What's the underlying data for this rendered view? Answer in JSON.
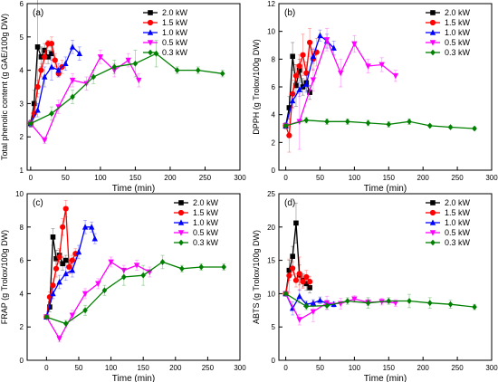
{
  "chart_data": [
    {
      "type": "line",
      "panel_label": "(a)",
      "xlabel": "Time (min)",
      "ylabel": "Total phenolic content (g GAE/100g DW)",
      "xlim": [
        -5,
        300
      ],
      "ylim": [
        1,
        6
      ],
      "xticks": [
        0,
        50,
        100,
        150,
        200,
        250,
        300
      ],
      "yticks": [
        1,
        2,
        3,
        4,
        5,
        6
      ],
      "legend_position": "top-center",
      "series": [
        {
          "name": "2.0 kW",
          "color": "#000000",
          "marker": "square",
          "x": [
            0,
            5,
            10,
            15,
            20,
            25,
            30
          ],
          "y": [
            2.4,
            3.0,
            4.7,
            4.4,
            4.6,
            4.4,
            4.5
          ],
          "err": [
            0.1,
            0.4,
            1.5,
            0.3,
            0.2,
            0.2,
            0.2
          ]
        },
        {
          "name": "1.5 kW",
          "color": "#ff0000",
          "marker": "circle",
          "x": [
            0,
            5,
            10,
            15,
            20,
            25,
            30,
            35,
            40,
            45
          ],
          "y": [
            2.4,
            2.7,
            3.5,
            4.0,
            4.4,
            4.8,
            4.8,
            4.3,
            3.9,
            4.1
          ],
          "err": [
            0.1,
            0.1,
            0.2,
            0.2,
            0.2,
            0.1,
            0.2,
            0.2,
            0.1,
            0.2
          ]
        },
        {
          "name": "1.0 kW",
          "color": "#0000ff",
          "marker": "triangle-up",
          "x": [
            0,
            10,
            20,
            30,
            40,
            50,
            60,
            70
          ],
          "y": [
            2.4,
            2.8,
            3.8,
            4.1,
            4.0,
            4.2,
            4.7,
            4.5
          ],
          "err": [
            0.1,
            0.2,
            0.3,
            0.4,
            0.2,
            0.2,
            0.2,
            0.2
          ]
        },
        {
          "name": "0.5 kW",
          "color": "#ff00ff",
          "marker": "triangle-down",
          "x": [
            0,
            20,
            40,
            60,
            80,
            100,
            120,
            140,
            155
          ],
          "y": [
            2.4,
            1.9,
            2.9,
            3.7,
            3.6,
            4.4,
            4.0,
            4.3,
            3.7
          ],
          "err": [
            0.1,
            0.1,
            0.2,
            0.2,
            0.2,
            0.2,
            0.2,
            0.2,
            0.2
          ]
        },
        {
          "name": "0.3 kW",
          "color": "#008000",
          "marker": "diamond",
          "x": [
            0,
            30,
            60,
            90,
            120,
            150,
            180,
            210,
            240,
            275
          ],
          "y": [
            2.4,
            2.7,
            3.2,
            3.8,
            4.1,
            4.2,
            4.5,
            4.0,
            4.0,
            3.9
          ],
          "err": [
            0.1,
            0.2,
            0.2,
            0.2,
            0.2,
            0.4,
            0.4,
            0.1,
            0.1,
            0.1
          ]
        }
      ]
    },
    {
      "type": "line",
      "panel_label": "(b)",
      "xlabel": "Time (min)",
      "ylabel": "DPPH  (g Trolox/100g DW)",
      "xlim": [
        -10,
        300
      ],
      "ylim": [
        0,
        12
      ],
      "xticks": [
        0,
        50,
        100,
        150,
        200,
        250,
        300
      ],
      "yticks": [
        0,
        2,
        4,
        6,
        8,
        10,
        12
      ],
      "legend_position": "top-right",
      "series": [
        {
          "name": "2.0 kW",
          "color": "#000000",
          "marker": "square",
          "x": [
            0,
            5,
            10,
            15,
            20,
            25,
            30,
            35
          ],
          "y": [
            3.2,
            4.5,
            8.2,
            6.1,
            7.2,
            6.0,
            6.3,
            5.6
          ],
          "err": [
            0.2,
            0.8,
            1.0,
            1.5,
            0.8,
            0.6,
            0.6,
            0.5
          ]
        },
        {
          "name": "1.5 kW",
          "color": "#ff0000",
          "marker": "circle",
          "x": [
            0,
            5,
            10,
            15,
            20,
            25,
            30,
            35,
            40,
            45
          ],
          "y": [
            3.2,
            2.5,
            5.5,
            6.8,
            7.5,
            8.3,
            7.0,
            9.2,
            8.0,
            8.5
          ],
          "err": [
            0.2,
            1.2,
            1.0,
            0.8,
            0.8,
            1.5,
            0.8,
            1.0,
            0.8,
            1.0
          ]
        },
        {
          "name": "1.0 kW",
          "color": "#0000ff",
          "marker": "triangle-up",
          "x": [
            0,
            10,
            20,
            30,
            40,
            50,
            60,
            70
          ],
          "y": [
            3.2,
            5.0,
            5.8,
            6.2,
            8.2,
            9.7,
            9.3,
            8.8
          ],
          "err": [
            0.2,
            0.5,
            0.5,
            0.6,
            0.5,
            0.4,
            0.5,
            0.5
          ]
        },
        {
          "name": "0.5 kW",
          "color": "#ff00ff",
          "marker": "triangle-down",
          "x": [
            0,
            20,
            40,
            60,
            80,
            100,
            120,
            140,
            160
          ],
          "y": [
            3.2,
            3.5,
            6.5,
            9.4,
            7.0,
            9.1,
            7.5,
            7.6,
            6.8
          ],
          "err": [
            0.2,
            2.0,
            0.8,
            0.8,
            1.0,
            0.6,
            0.5,
            0.5,
            0.4
          ]
        },
        {
          "name": "0.3 kW",
          "color": "#008000",
          "marker": "diamond",
          "x": [
            0,
            30,
            60,
            90,
            120,
            150,
            180,
            210,
            240,
            275
          ],
          "y": [
            3.2,
            3.6,
            3.5,
            3.5,
            3.4,
            3.3,
            3.5,
            3.2,
            3.1,
            3.0
          ],
          "err": [
            0.2,
            0.2,
            0.2,
            0.2,
            0.2,
            0.2,
            0.2,
            0.1,
            0.1,
            0.1
          ]
        }
      ]
    },
    {
      "type": "line",
      "panel_label": "(c)",
      "xlabel": "Time (min)",
      "ylabel": "FRAP  (g Trolox/100g DW)",
      "xlim": [
        -30,
        300
      ],
      "ylim": [
        0,
        10
      ],
      "xticks": [
        0,
        50,
        100,
        150,
        200,
        250,
        300
      ],
      "yticks": [
        0,
        2,
        4,
        6,
        8,
        10
      ],
      "legend_position": "top-right",
      "series": [
        {
          "name": "2.0 kW",
          "color": "#000000",
          "marker": "square",
          "x": [
            0,
            5,
            10,
            15,
            20,
            25,
            30
          ],
          "y": [
            2.6,
            3.2,
            7.4,
            6.1,
            6.3,
            5.8,
            6.0
          ],
          "err": [
            0.1,
            0.3,
            0.5,
            0.5,
            0.4,
            0.4,
            0.3
          ]
        },
        {
          "name": "1.5 kW",
          "color": "#ff0000",
          "marker": "circle",
          "x": [
            0,
            5,
            10,
            15,
            20,
            25,
            30,
            35,
            40,
            45
          ],
          "y": [
            2.6,
            3.8,
            4.5,
            5.5,
            6.2,
            8.0,
            9.1,
            5.6,
            6.0,
            6.4
          ],
          "err": [
            0.1,
            0.3,
            0.4,
            0.5,
            0.4,
            0.5,
            0.5,
            0.4,
            0.3,
            0.3
          ]
        },
        {
          "name": "1.0 kW",
          "color": "#0000ff",
          "marker": "triangle-up",
          "x": [
            0,
            10,
            20,
            30,
            40,
            50,
            60,
            70,
            75
          ],
          "y": [
            2.6,
            4.0,
            4.7,
            5.2,
            5.4,
            6.5,
            8.0,
            8.0,
            7.3
          ],
          "err": [
            0.1,
            0.3,
            0.4,
            0.4,
            0.4,
            0.4,
            0.4,
            0.3,
            0.3
          ]
        },
        {
          "name": "0.5 kW",
          "color": "#ff00ff",
          "marker": "triangle-down",
          "x": [
            0,
            20,
            40,
            60,
            80,
            100,
            120,
            140,
            160
          ],
          "y": [
            2.6,
            1.3,
            2.7,
            4.0,
            4.6,
            5.9,
            5.4,
            5.7,
            5.3
          ],
          "err": [
            0.1,
            0.2,
            0.3,
            0.3,
            0.3,
            0.3,
            0.3,
            0.3,
            0.3
          ]
        },
        {
          "name": "0.3 kW",
          "color": "#008000",
          "marker": "diamond",
          "x": [
            0,
            30,
            60,
            90,
            120,
            150,
            180,
            210,
            240,
            275
          ],
          "y": [
            2.6,
            2.2,
            3.0,
            4.2,
            5.0,
            5.1,
            5.9,
            5.5,
            5.6,
            5.6
          ],
          "err": [
            0.1,
            0.2,
            0.3,
            0.3,
            0.5,
            0.6,
            0.4,
            0.2,
            0.2,
            0.2
          ]
        }
      ]
    },
    {
      "type": "line",
      "panel_label": "(d)",
      "xlabel": "Time (min)",
      "ylabel": "ABTS  (g Trolox/100g DW)",
      "xlim": [
        -10,
        300
      ],
      "ylim": [
        0,
        25
      ],
      "xticks": [
        0,
        50,
        100,
        150,
        200,
        250,
        300
      ],
      "yticks": [
        0,
        5,
        10,
        15,
        20,
        25
      ],
      "legend_position": "top-right",
      "series": [
        {
          "name": "2.0 kW",
          "color": "#000000",
          "marker": "square",
          "x": [
            0,
            5,
            10,
            15,
            20,
            25,
            30,
            35
          ],
          "y": [
            10.0,
            13.5,
            15.6,
            20.6,
            12.8,
            12.0,
            11.5,
            10.9
          ],
          "err": [
            0.3,
            1.5,
            1.5,
            3.0,
            1.5,
            1.0,
            1.0,
            0.8
          ]
        },
        {
          "name": "1.5 kW",
          "color": "#ff0000",
          "marker": "circle",
          "x": [
            0,
            5,
            10,
            15,
            20,
            25,
            30,
            35
          ],
          "y": [
            10.0,
            12.7,
            13.8,
            12.0,
            13.0,
            11.8,
            12.5,
            11.8
          ],
          "err": [
            0.3,
            2.5,
            1.0,
            1.0,
            2.5,
            1.0,
            1.0,
            0.8
          ]
        },
        {
          "name": "1.0 kW",
          "color": "#0000ff",
          "marker": "triangle-up",
          "x": [
            0,
            10,
            20,
            30,
            40,
            50,
            60,
            70
          ],
          "y": [
            10.0,
            7.8,
            9.6,
            8.4,
            8.6,
            9.0,
            8.5,
            8.4
          ],
          "err": [
            0.3,
            1.0,
            1.0,
            0.5,
            0.5,
            0.5,
            0.5,
            0.4
          ]
        },
        {
          "name": "0.5 kW",
          "color": "#ff00ff",
          "marker": "triangle-down",
          "x": [
            0,
            20,
            40,
            60,
            80,
            100,
            120,
            140,
            160
          ],
          "y": [
            10.0,
            6.1,
            7.3,
            8.6,
            8.5,
            9.2,
            8.7,
            8.8,
            8.6
          ],
          "err": [
            0.3,
            0.8,
            1.5,
            1.0,
            0.8,
            0.5,
            0.5,
            0.5,
            0.5
          ]
        },
        {
          "name": "0.3 kW",
          "color": "#008000",
          "marker": "diamond",
          "x": [
            0,
            30,
            60,
            90,
            120,
            150,
            180,
            210,
            240,
            275
          ],
          "y": [
            10.0,
            8.1,
            8.2,
            8.9,
            8.6,
            8.9,
            8.9,
            8.6,
            8.4,
            8.0
          ],
          "err": [
            0.3,
            0.5,
            0.5,
            0.5,
            0.8,
            0.5,
            1.0,
            0.8,
            0.6,
            0.4
          ]
        }
      ]
    }
  ]
}
